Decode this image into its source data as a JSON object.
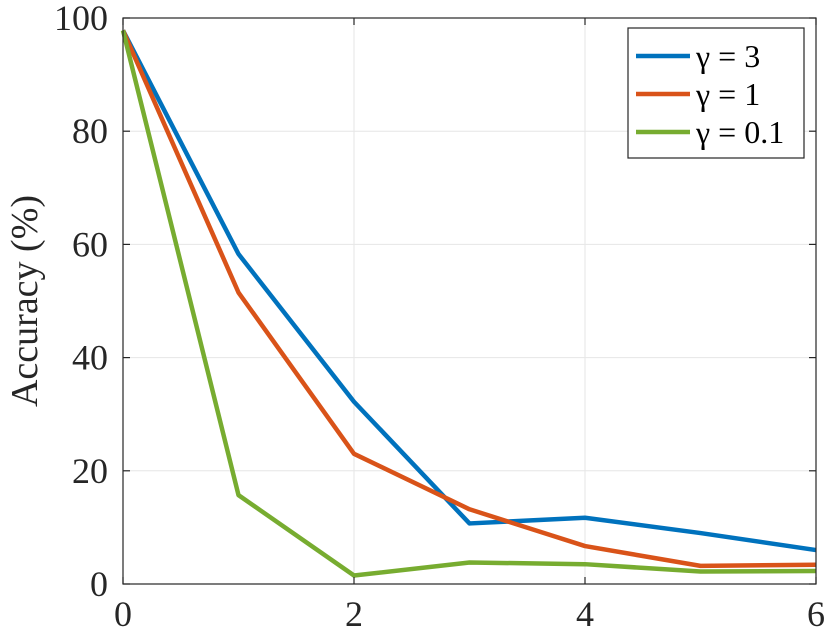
{
  "chart_data": {
    "type": "line",
    "title": "",
    "xlabel": "",
    "ylabel": "Accuracy (%)",
    "xlim": [
      0,
      6
    ],
    "ylim": [
      0,
      100
    ],
    "x_ticks": [
      0,
      2,
      4,
      6
    ],
    "y_ticks": [
      0,
      20,
      40,
      60,
      80,
      100
    ],
    "grid": true,
    "legend_position": "top-right",
    "x": [
      0,
      1,
      2,
      3,
      4,
      5,
      6
    ],
    "series": [
      {
        "name": "γ = 3",
        "color": "#0072BD",
        "values": [
          97.8,
          58.3,
          32.2,
          10.7,
          11.7,
          9.0,
          6.0
        ]
      },
      {
        "name": "γ = 1",
        "color": "#D95319",
        "values": [
          97.8,
          51.5,
          23.0,
          13.2,
          6.7,
          3.2,
          3.4
        ]
      },
      {
        "name": "γ = 0.1",
        "color": "#77AC30",
        "values": [
          97.8,
          15.7,
          1.5,
          3.8,
          3.5,
          2.2,
          2.3
        ]
      }
    ]
  }
}
